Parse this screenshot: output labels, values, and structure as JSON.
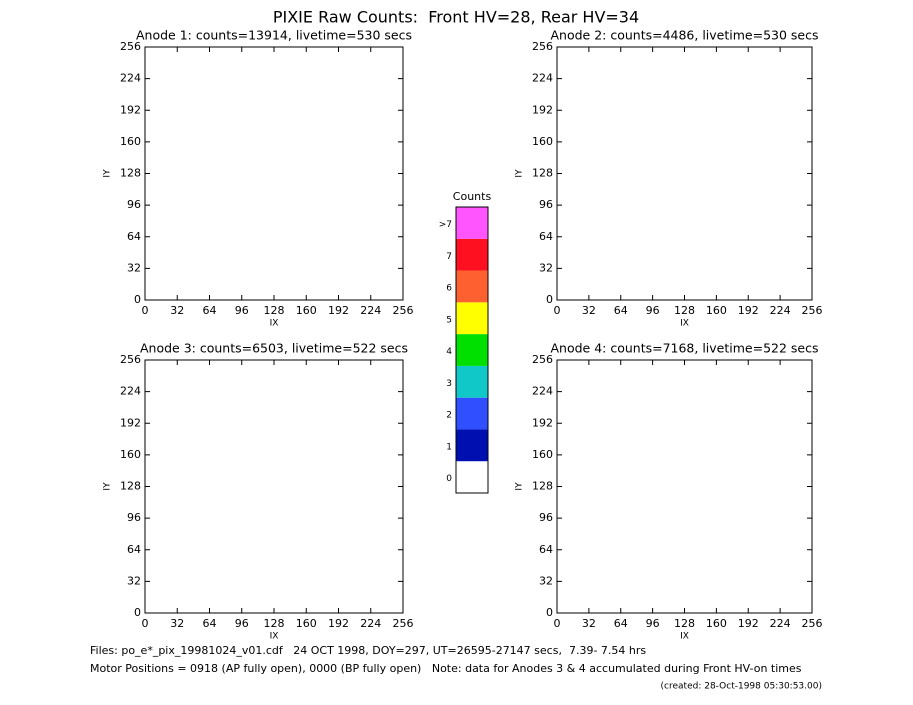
{
  "title": "PIXIE Raw Counts:  Front HV=28, Rear HV=34",
  "chart_data": [
    {
      "type": "heatmap",
      "title": "Anode 1: counts=13914, livetime=530 secs",
      "xlabel": "IX",
      "ylabel": "IY",
      "xlim": [
        0,
        256
      ],
      "ylim": [
        0,
        256
      ],
      "xticks": [
        0,
        32,
        64,
        96,
        128,
        160,
        192,
        224,
        256
      ],
      "yticks": [
        0,
        32,
        64,
        96,
        128,
        160,
        192,
        224,
        256
      ]
    },
    {
      "type": "heatmap",
      "title": "Anode 2: counts=4486, livetime=530 secs",
      "xlabel": "IX",
      "ylabel": "IY",
      "xlim": [
        0,
        256
      ],
      "ylim": [
        0,
        256
      ],
      "xticks": [
        0,
        32,
        64,
        96,
        128,
        160,
        192,
        224,
        256
      ],
      "yticks": [
        0,
        32,
        64,
        96,
        128,
        160,
        192,
        224,
        256
      ]
    },
    {
      "type": "heatmap",
      "title": "Anode 3: counts=6503, livetime=522 secs",
      "xlabel": "IX",
      "ylabel": "IY",
      "xlim": [
        0,
        256
      ],
      "ylim": [
        0,
        256
      ],
      "xticks": [
        0,
        32,
        64,
        96,
        128,
        160,
        192,
        224,
        256
      ],
      "yticks": [
        0,
        32,
        64,
        96,
        128,
        160,
        192,
        224,
        256
      ]
    },
    {
      "type": "heatmap",
      "title": "Anode 4: counts=7168, livetime=522 secs",
      "xlabel": "IX",
      "ylabel": "IY",
      "xlim": [
        0,
        256
      ],
      "ylim": [
        0,
        256
      ],
      "xticks": [
        0,
        32,
        64,
        96,
        128,
        160,
        192,
        224,
        256
      ],
      "yticks": [
        0,
        32,
        64,
        96,
        128,
        160,
        192,
        224,
        256
      ]
    }
  ],
  "colorbar": {
    "title": "Counts",
    "levels": [
      {
        "label": "0",
        "color": "#ffffff"
      },
      {
        "label": "1",
        "color": "#0010b0"
      },
      {
        "label": "2",
        "color": "#3050ff"
      },
      {
        "label": "3",
        "color": "#10c8c8"
      },
      {
        "label": "4",
        "color": "#00e000"
      },
      {
        "label": "5",
        "color": "#ffff00"
      },
      {
        "label": "6",
        "color": "#ff6030"
      },
      {
        "label": "7",
        "color": "#ff1020"
      },
      {
        "label": ">7",
        "color": "#ff55ff"
      }
    ]
  },
  "footer": [
    "Files: po_e*_pix_19981024_v01.cdf   24 OCT 1998, DOY=297, UT=26595-27147 secs,  7.39- 7.54 hrs",
    "Motor Positions = 0918 (AP fully open), 0000 (BP fully open)   Note: data for Anodes 3 & 4 accumulated during Front HV-on times"
  ],
  "created": "(created: 28-Oct-1998 05:30:53.00)"
}
